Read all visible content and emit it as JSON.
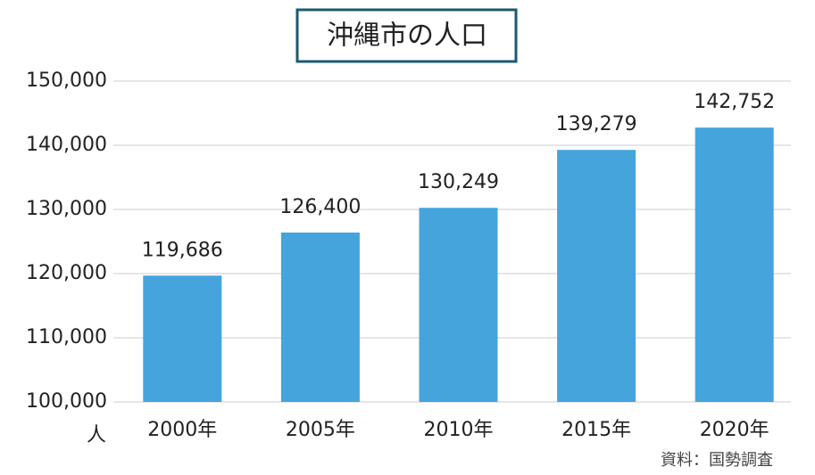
{
  "chart_data": {
    "type": "bar",
    "title": "沖縄市の人口",
    "categories": [
      "2000年",
      "2005年",
      "2010年",
      "2015年",
      "2020年"
    ],
    "values": [
      119686,
      126400,
      130249,
      139279,
      142752
    ],
    "value_labels": [
      "119,686",
      "126,400",
      "130,249",
      "139,279",
      "142,752"
    ],
    "color": "#45a4db",
    "ylim": [
      100000,
      150000
    ],
    "yticks": [
      {
        "value": 100000,
        "label": "100,000"
      },
      {
        "value": 110000,
        "label": "110,000"
      },
      {
        "value": 120000,
        "label": "120,000"
      },
      {
        "value": 130000,
        "label": "130,000"
      },
      {
        "value": 140000,
        "label": "140,000"
      },
      {
        "value": 150000,
        "label": "150,000"
      }
    ],
    "grid": true,
    "y_unit": "人",
    "source": "資料：国勢調査"
  }
}
